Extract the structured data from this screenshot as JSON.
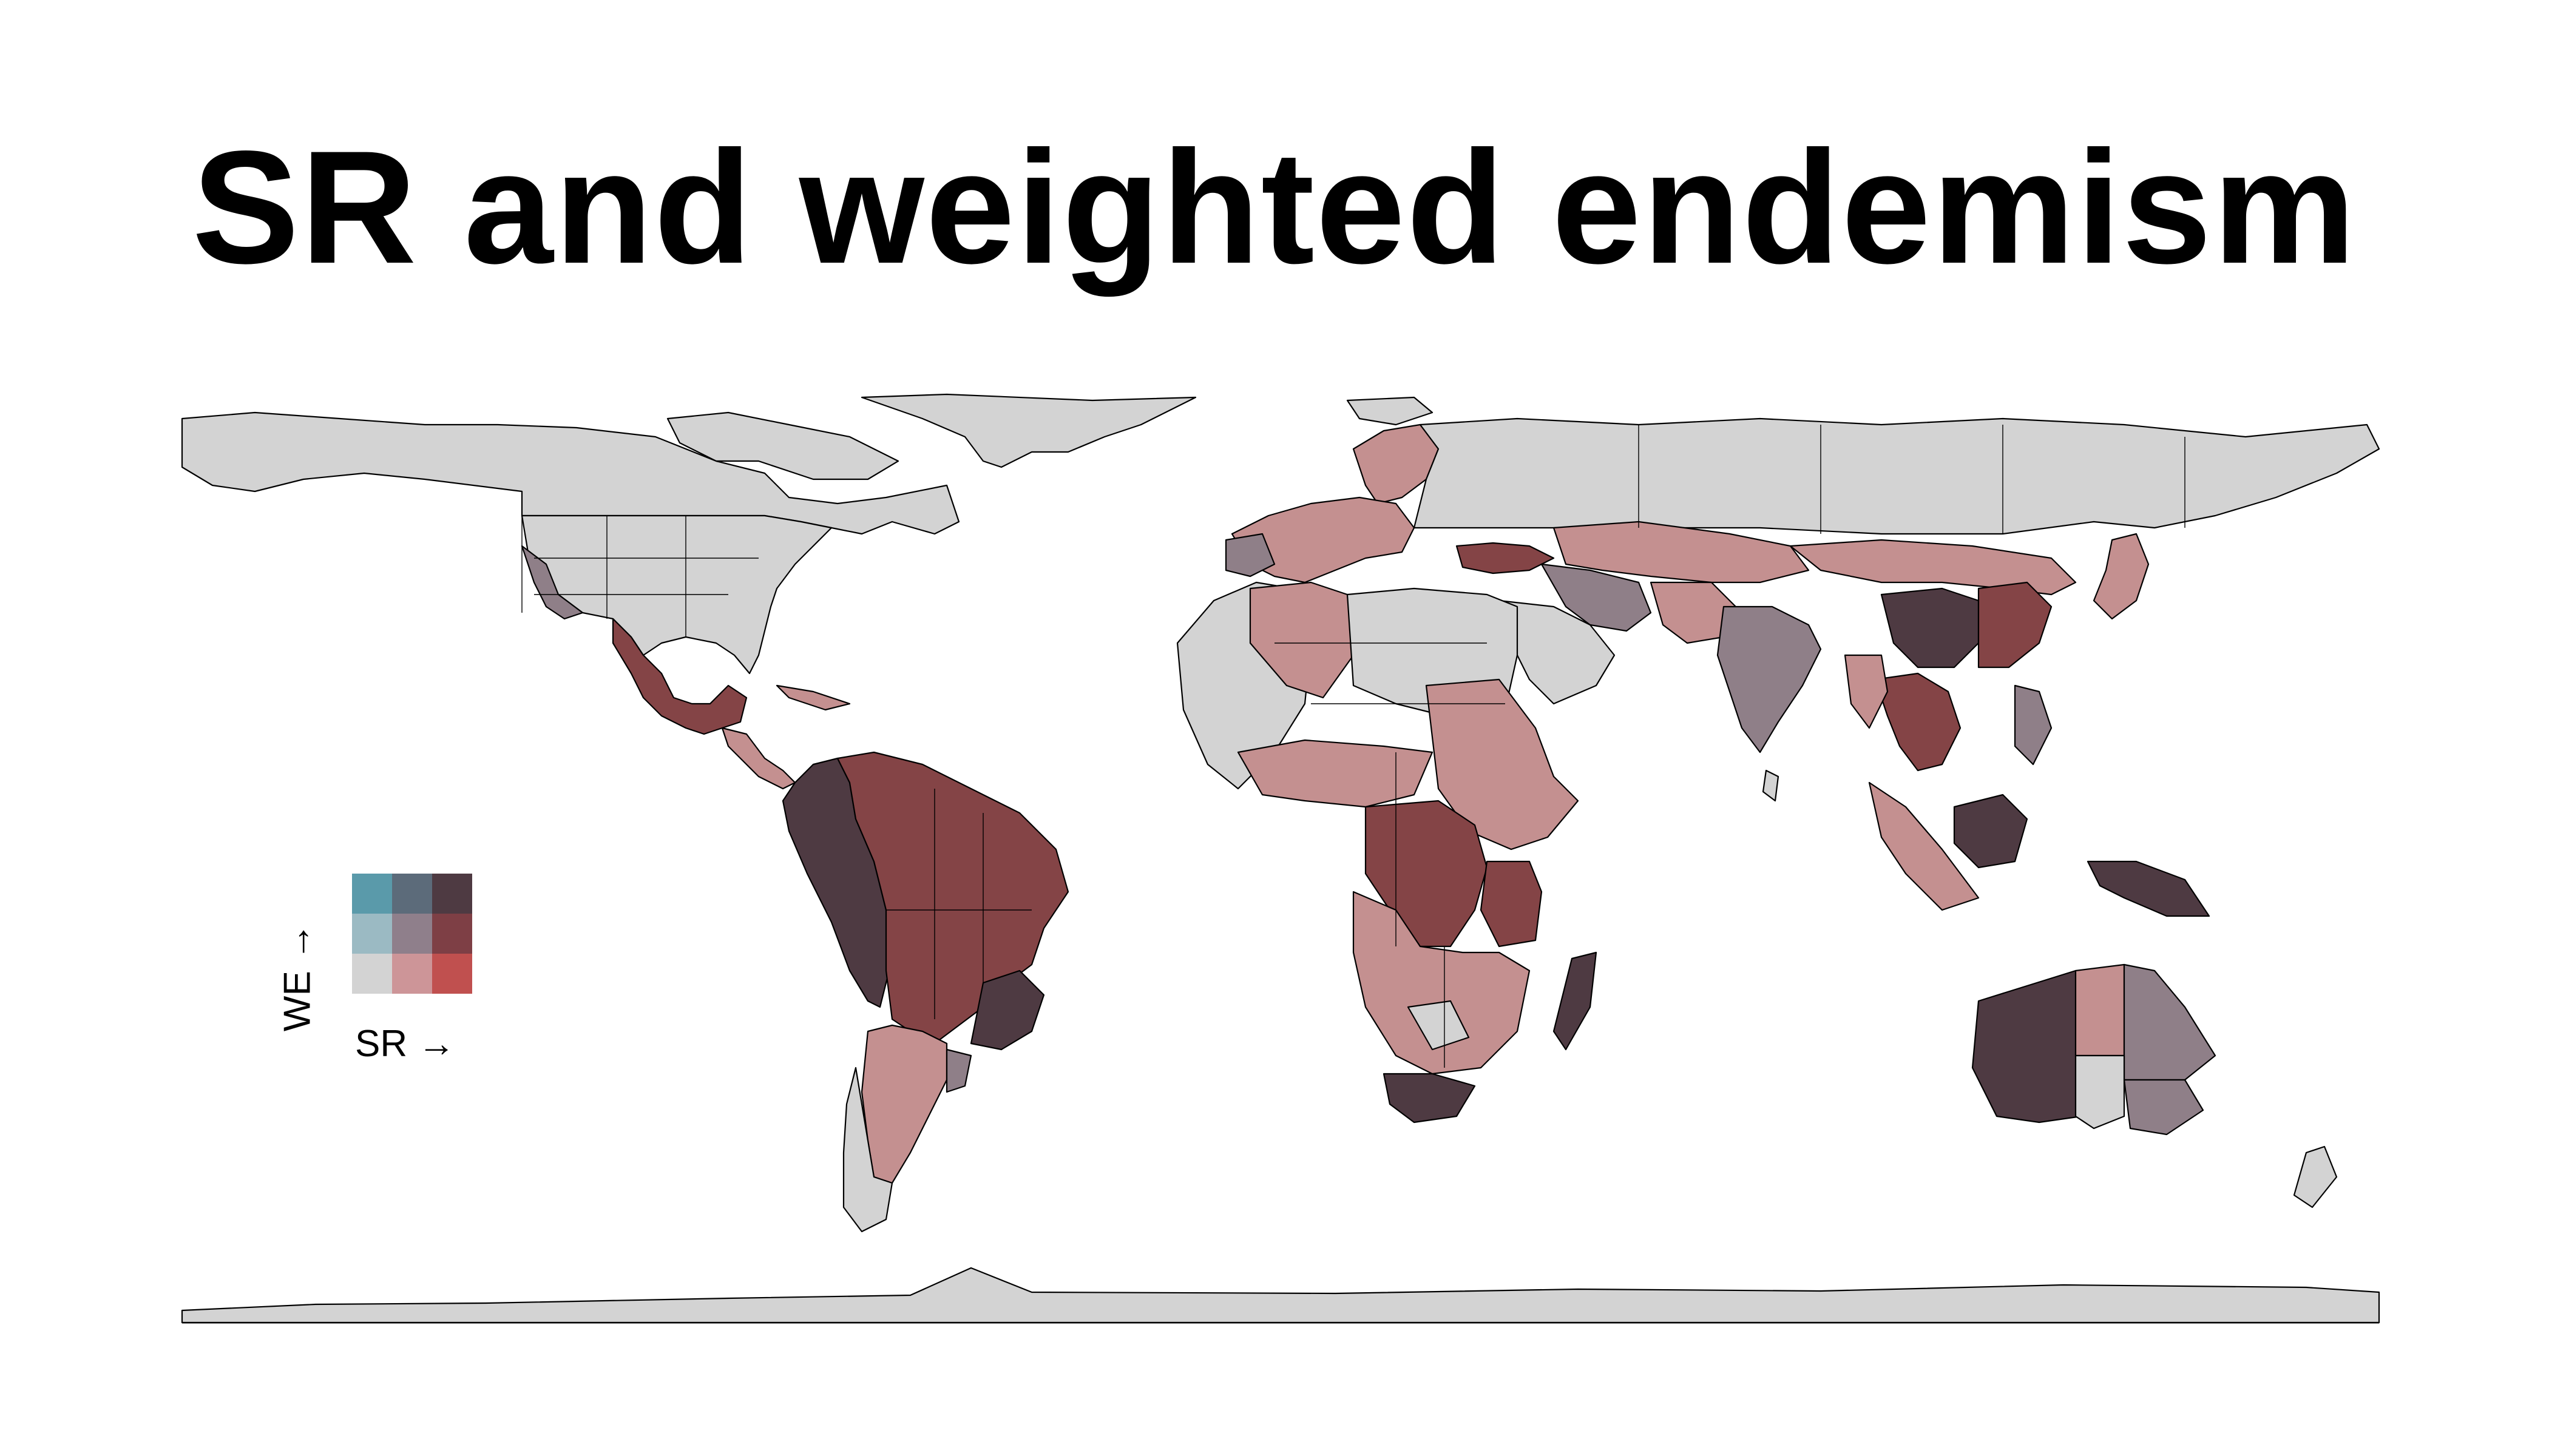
{
  "title": "SR and weighted endemism",
  "legend": {
    "y_label": "WE →",
    "x_label": "SR →",
    "grid_colors": [
      [
        "#5a9aaa",
        "#5c6b7a",
        "#4e3a42"
      ],
      [
        "#9bbac3",
        "#8f7f8b",
        "#7e3f45"
      ],
      [
        "#d3d3d3",
        "#cd9598",
        "#c0504f"
      ]
    ]
  },
  "colors": {
    "none": "#d3d3d3",
    "high_sr": "#c49090",
    "mid": "#8f7f88",
    "high_both": "#844446",
    "top": "#4e3a42",
    "ocean": "#ffffff"
  }
}
